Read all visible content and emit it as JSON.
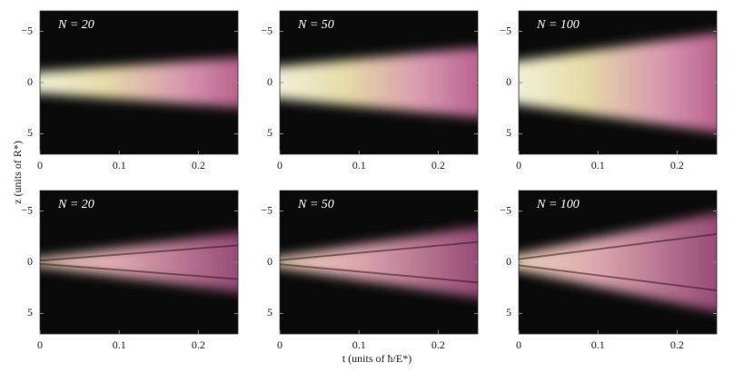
{
  "chart_data": [
    {
      "type": "heatmap",
      "annotation": "N = 20",
      "xlim": [
        0,
        0.25
      ],
      "ylim": [
        7,
        -7
      ],
      "xticks": [
        0,
        0.1,
        0.2
      ],
      "yticks": [
        {
          "value": -5,
          "label": "−5"
        },
        0,
        5
      ]
    },
    {
      "type": "heatmap",
      "annotation": "N = 50",
      "xlim": [
        0,
        0.25
      ],
      "ylim": [
        7,
        -7
      ],
      "xticks": [
        0,
        0.1,
        0.2
      ],
      "yticks": [
        {
          "value": -5,
          "label": "−5"
        },
        0,
        5
      ]
    },
    {
      "type": "heatmap",
      "annotation": "N = 100",
      "xlim": [
        0,
        0.25
      ],
      "ylim": [
        7,
        -7
      ],
      "xticks": [
        0,
        0.1,
        0.2
      ],
      "yticks": [
        {
          "value": -5,
          "label": "−5"
        },
        0,
        5
      ]
    },
    {
      "type": "heatmap",
      "annotation": "N = 20",
      "xlim": [
        0,
        0.25
      ],
      "ylim": [
        7,
        -7
      ],
      "xticks": [
        0,
        0.1,
        0.2
      ],
      "yticks": [
        {
          "value": -5,
          "label": "−5"
        },
        0,
        5
      ]
    },
    {
      "type": "heatmap",
      "annotation": "N = 50",
      "xlim": [
        0,
        0.25
      ],
      "ylim": [
        7,
        -7
      ],
      "xticks": [
        0,
        0.1,
        0.2
      ],
      "yticks": [
        {
          "value": -5,
          "label": "−5"
        },
        0,
        5
      ]
    },
    {
      "type": "heatmap",
      "annotation": "N = 100",
      "xlim": [
        0,
        0.25
      ],
      "ylim": [
        7,
        -7
      ],
      "xticks": [
        0,
        0.1,
        0.2
      ],
      "yticks": [
        {
          "value": -5,
          "label": "−5"
        },
        0,
        5
      ]
    }
  ],
  "figure": {
    "xlabel": "t (units of ħ/E*)",
    "ylabel": "z (units of R*)"
  }
}
